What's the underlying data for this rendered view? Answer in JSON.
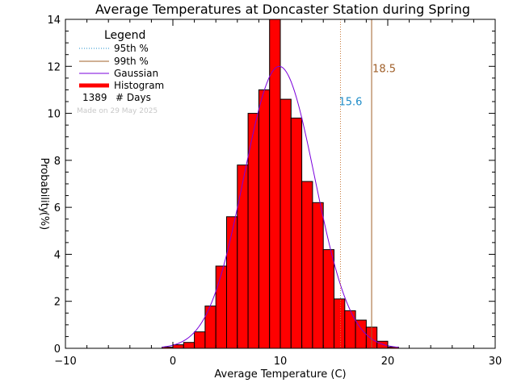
{
  "chart_data": {
    "type": "bar",
    "title": "Average Temperatures at Doncaster Station during Spring",
    "xlabel": "Average Temperature (C)",
    "ylabel_top": "Probability",
    "ylabel_bottom": "(%)",
    "xlim": [
      -10,
      30
    ],
    "ylim": [
      0,
      14
    ],
    "xticks": [
      -10,
      0,
      10,
      20,
      30
    ],
    "yticks": [
      0,
      2,
      4,
      6,
      8,
      10,
      12,
      14
    ],
    "bin_width": 1,
    "bins": [
      {
        "x": -1,
        "value": 0.05
      },
      {
        "x": 0,
        "value": 0.15
      },
      {
        "x": 1,
        "value": 0.25
      },
      {
        "x": 2,
        "value": 0.7
      },
      {
        "x": 3,
        "value": 1.8
      },
      {
        "x": 4,
        "value": 3.5
      },
      {
        "x": 5,
        "value": 5.6
      },
      {
        "x": 6,
        "value": 7.8
      },
      {
        "x": 7,
        "value": 10.0
      },
      {
        "x": 8,
        "value": 11.0
      },
      {
        "x": 9,
        "value": 14.0
      },
      {
        "x": 10,
        "value": 10.6
      },
      {
        "x": 11,
        "value": 9.8
      },
      {
        "x": 12,
        "value": 7.1
      },
      {
        "x": 13,
        "value": 6.2
      },
      {
        "x": 14,
        "value": 4.2
      },
      {
        "x": 15,
        "value": 2.1
      },
      {
        "x": 16,
        "value": 1.6
      },
      {
        "x": 17,
        "value": 1.2
      },
      {
        "x": 18,
        "value": 0.9
      },
      {
        "x": 19,
        "value": 0.3
      },
      {
        "x": 20,
        "value": 0.05
      }
    ],
    "gaussian": {
      "mean": 9.9,
      "sigma": 3.3,
      "peak": 12.0
    },
    "percentiles": {
      "p95": {
        "value": 15.6,
        "label": "15.6",
        "color": "#c87837"
      },
      "p99": {
        "value": 18.5,
        "label": "18.5",
        "color": "#a0602a"
      }
    },
    "percentile_label_colors": {
      "p95": "#1e8cc8",
      "p99": "#a0602a"
    },
    "colors": {
      "histogram": "#ff0000",
      "gaussian": "#7a00dc",
      "p95_legend": "#1e8cc8",
      "p99_line": "#a0602a"
    },
    "legend": {
      "title": "Legend",
      "placement": "top-left",
      "items": [
        {
          "label": "95th %"
        },
        {
          "label": "99th %"
        },
        {
          "label": "Gaussian"
        },
        {
          "label": "Histogram"
        }
      ],
      "days_count": "1389",
      "days_label": "# Days"
    },
    "made_on": "Made on 29 May 2025"
  }
}
